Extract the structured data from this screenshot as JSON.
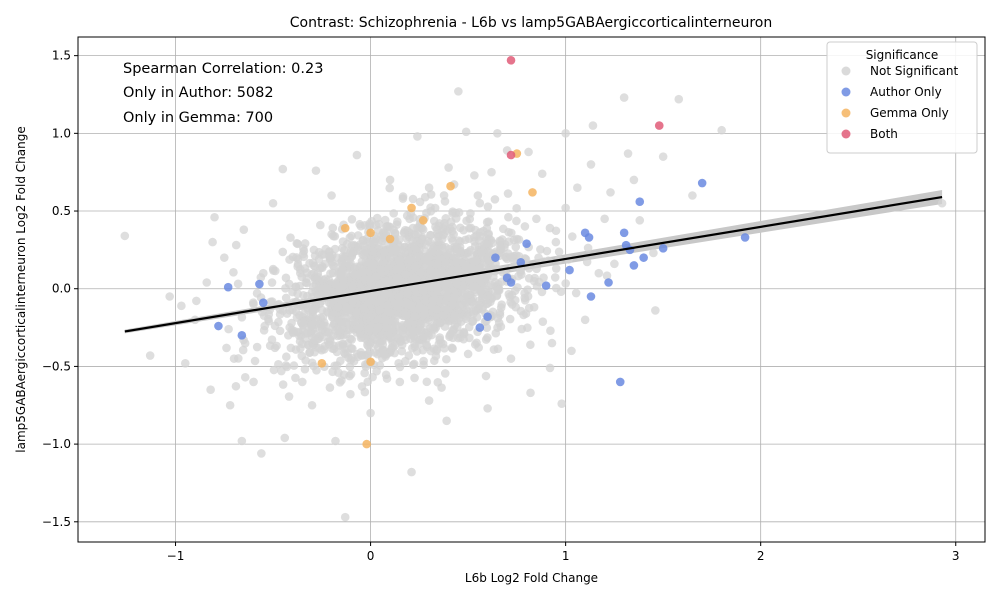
{
  "chart_data": {
    "type": "scatter",
    "title": "Contrast: Schizophrenia - L6b vs lamp5GABAergiccorticalinterneuron",
    "xlabel": "L6b Log2 Fold Change",
    "ylabel": "lamp5GABAergiccorticalinterneuron Log2 Fold Change",
    "xlim": [
      -1.5,
      3.15
    ],
    "ylim": [
      -1.63,
      1.62
    ],
    "xticks": [
      -1,
      0,
      1,
      2,
      3
    ],
    "yticks": [
      -1.5,
      -1.0,
      -0.5,
      0.0,
      0.5,
      1.0,
      1.5
    ],
    "grid": true,
    "legend": {
      "title": "Significance",
      "placement": "top-right",
      "entries": [
        "Not Significant",
        "Author Only",
        "Gemma Only",
        "Both"
      ]
    },
    "annotations": [
      "Spearman Correlation: 0.23",
      "Only in Author: 5082",
      "Only in Gemma: 700"
    ],
    "colors": {
      "not_significant": "#d3d3d3",
      "author_only": "#6a8ae0",
      "gemma_only": "#f5b460",
      "both": "#e05c78",
      "regression": "#000000",
      "ci_band": "#c8c8c8"
    },
    "regression_line": {
      "x": [
        -1.26,
        2.93
      ],
      "y": [
        -0.275,
        0.59
      ]
    },
    "series": [
      {
        "name": "Not Significant",
        "points": [
          [
            -1.26,
            0.34
          ],
          [
            -1.13,
            -0.43
          ],
          [
            -1.03,
            -0.05
          ],
          [
            -0.97,
            -0.11
          ],
          [
            -0.84,
            0.04
          ],
          [
            -0.82,
            -0.65
          ],
          [
            -0.8,
            0.46
          ],
          [
            -0.81,
            0.3
          ],
          [
            -0.72,
            -0.75
          ],
          [
            -0.66,
            -0.98
          ],
          [
            -0.6,
            -0.6
          ],
          [
            -0.56,
            -1.06
          ],
          [
            -0.45,
            0.77
          ],
          [
            -0.44,
            -0.96
          ],
          [
            -0.28,
            0.76
          ],
          [
            -0.18,
            -0.98
          ],
          [
            -0.13,
            -1.47
          ],
          [
            -0.07,
            0.86
          ],
          [
            0.21,
            -1.18
          ],
          [
            0.24,
            0.98
          ],
          [
            0.39,
            -0.85
          ],
          [
            0.45,
            1.27
          ],
          [
            0.49,
            1.01
          ],
          [
            0.65,
            1.0
          ],
          [
            0.7,
            0.89
          ],
          [
            0.81,
            0.88
          ],
          [
            0.82,
            -0.67
          ],
          [
            0.92,
            -0.51
          ],
          [
            0.98,
            -0.74
          ],
          [
            1.0,
            1.0
          ],
          [
            1.14,
            1.05
          ],
          [
            1.3,
            1.23
          ],
          [
            1.32,
            0.87
          ],
          [
            1.46,
            -0.14
          ],
          [
            1.5,
            0.85
          ],
          [
            1.58,
            1.22
          ],
          [
            1.65,
            0.6
          ],
          [
            1.8,
            1.02
          ],
          [
            1.06,
            0.65
          ],
          [
            1.23,
            0.62
          ],
          [
            1.13,
            0.8
          ],
          [
            1.35,
            0.7
          ],
          [
            0.88,
            0.74
          ],
          [
            1.0,
            0.52
          ],
          [
            1.2,
            0.45
          ],
          [
            1.17,
            0.1
          ],
          [
            1.1,
            -0.2
          ],
          [
            1.38,
            0.44
          ],
          [
            0.95,
            0.3
          ],
          [
            0.6,
            -0.77
          ],
          [
            0.3,
            -0.72
          ],
          [
            0.0,
            -0.8
          ],
          [
            -0.3,
            -0.75
          ],
          [
            -0.5,
            0.55
          ],
          [
            0.1,
            0.7
          ],
          [
            0.3,
            0.65
          ],
          [
            0.55,
            0.6
          ],
          [
            0.72,
            -0.45
          ],
          [
            -0.9,
            -0.2
          ],
          [
            -0.65,
            0.38
          ],
          [
            -0.7,
            -0.45
          ],
          [
            1.03,
            -0.4
          ],
          [
            0.85,
            0.45
          ],
          [
            -0.2,
            0.6
          ],
          [
            0.15,
            -0.6
          ],
          [
            2.93,
            0.55
          ],
          [
            1.45,
            0.23
          ],
          [
            1.25,
            0.16
          ],
          [
            0.93,
            -0.35
          ],
          [
            -0.35,
            -0.6
          ],
          [
            -0.95,
            -0.48
          ],
          [
            -0.75,
            0.2
          ],
          [
            0.4,
            0.78
          ],
          [
            0.62,
            0.75
          ],
          [
            -0.1,
            -0.55
          ],
          [
            0.5,
            -0.42
          ],
          [
            0.75,
            0.32
          ],
          [
            -0.55,
            0.1
          ],
          [
            0.2,
            0.45
          ],
          [
            0.05,
            -0.35
          ]
        ]
      },
      {
        "name": "Author Only",
        "points": [
          [
            -0.78,
            -0.24
          ],
          [
            -0.73,
            0.01
          ],
          [
            -0.66,
            -0.3
          ],
          [
            -0.55,
            -0.09
          ],
          [
            -0.57,
            0.03
          ],
          [
            0.56,
            -0.25
          ],
          [
            0.6,
            -0.18
          ],
          [
            0.64,
            0.2
          ],
          [
            0.7,
            0.07
          ],
          [
            0.72,
            0.04
          ],
          [
            0.77,
            0.17
          ],
          [
            0.8,
            0.29
          ],
          [
            0.9,
            0.02
          ],
          [
            1.02,
            0.12
          ],
          [
            1.1,
            0.36
          ],
          [
            1.12,
            0.33
          ],
          [
            1.13,
            -0.05
          ],
          [
            1.22,
            0.04
          ],
          [
            1.28,
            -0.6
          ],
          [
            1.3,
            0.36
          ],
          [
            1.31,
            0.28
          ],
          [
            1.33,
            0.25
          ],
          [
            1.35,
            0.15
          ],
          [
            1.38,
            0.56
          ],
          [
            1.4,
            0.2
          ],
          [
            1.5,
            0.26
          ],
          [
            1.7,
            0.68
          ],
          [
            1.92,
            0.33
          ]
        ]
      },
      {
        "name": "Gemma Only",
        "points": [
          [
            -0.13,
            0.39
          ],
          [
            -0.02,
            -1.0
          ],
          [
            0.0,
            0.36
          ],
          [
            0.0,
            -0.47
          ],
          [
            0.1,
            0.32
          ],
          [
            0.21,
            0.52
          ],
          [
            0.27,
            0.44
          ],
          [
            0.41,
            0.66
          ],
          [
            0.75,
            0.87
          ],
          [
            0.83,
            0.62
          ],
          [
            -0.25,
            -0.48
          ]
        ]
      },
      {
        "name": "Both",
        "points": [
          [
            0.72,
            1.47
          ],
          [
            0.72,
            0.86
          ],
          [
            1.48,
            1.05
          ]
        ]
      }
    ]
  }
}
